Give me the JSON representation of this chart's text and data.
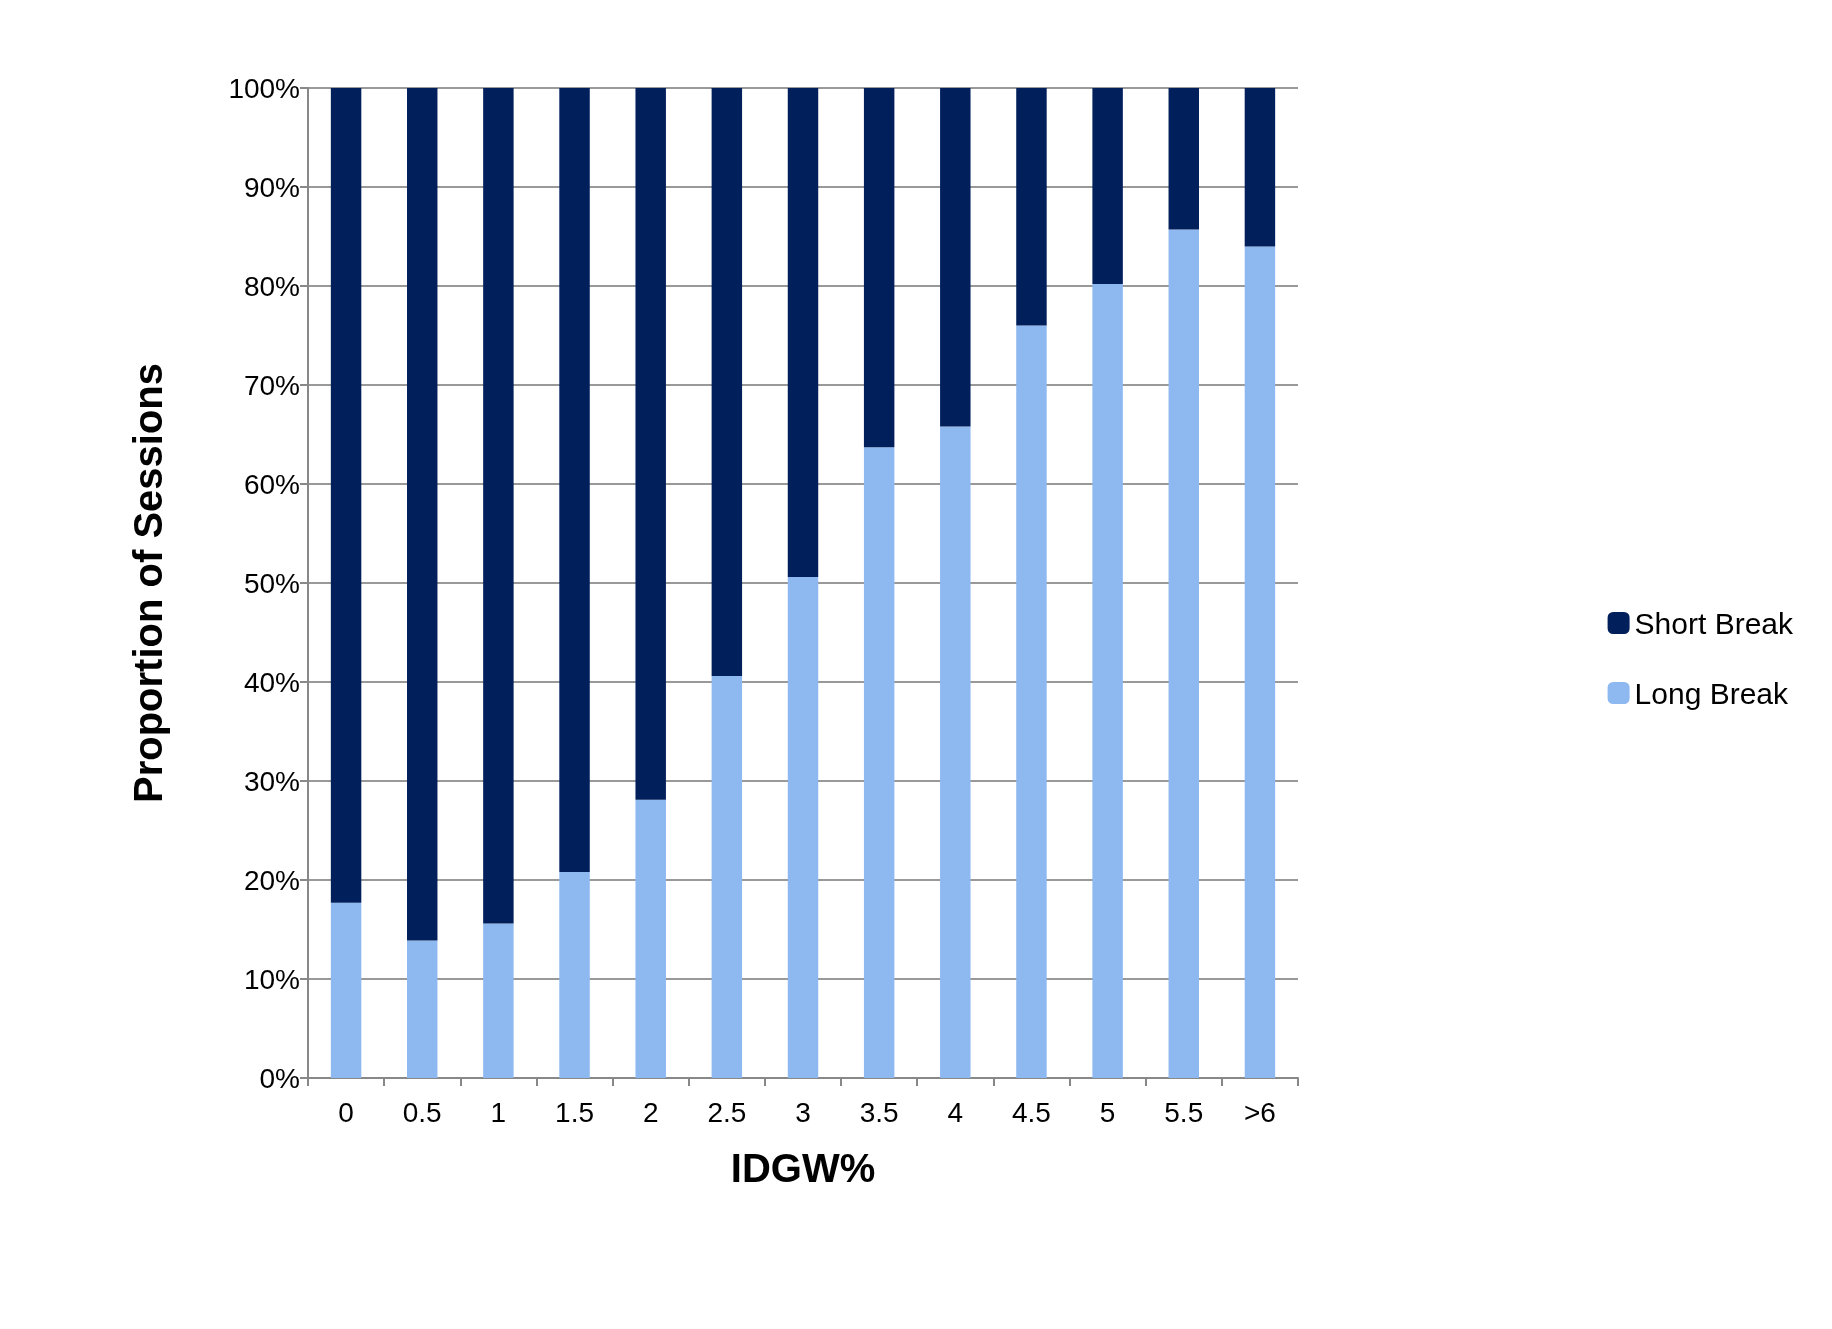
{
  "chart_data": {
    "type": "bar",
    "stacked": true,
    "xlabel": "IDGW%",
    "ylabel": "Proportion of Sessions",
    "categories": [
      "0",
      "0.5",
      "1",
      "1.5",
      "2",
      "2.5",
      "3",
      "3.5",
      "4",
      "4.5",
      "5",
      "5.5",
      ">6"
    ],
    "series": [
      {
        "name": "Long Break",
        "color": "#8db8f0",
        "values": [
          17.7,
          13.9,
          15.6,
          20.8,
          28.1,
          40.6,
          50.6,
          63.7,
          65.8,
          76.0,
          80.2,
          85.7,
          84.0
        ]
      },
      {
        "name": "Short Break",
        "color": "#001f5b",
        "values": [
          82.3,
          86.1,
          84.4,
          79.2,
          71.9,
          59.4,
          49.4,
          36.3,
          34.2,
          24.0,
          19.8,
          14.3,
          16.0
        ]
      }
    ],
    "ylim": [
      0,
      100
    ],
    "yticks": [
      {
        "value": 0,
        "label": "0%"
      },
      {
        "value": 10,
        "label": "10%"
      },
      {
        "value": 20,
        "label": "20%"
      },
      {
        "value": 30,
        "label": "30%"
      },
      {
        "value": 40,
        "label": "40%"
      },
      {
        "value": 50,
        "label": "50%"
      },
      {
        "value": 60,
        "label": "60%"
      },
      {
        "value": 70,
        "label": "70%"
      },
      {
        "value": 80,
        "label": "80%"
      },
      {
        "value": 90,
        "label": "90%"
      },
      {
        "value": 100,
        "label": "100%"
      }
    ],
    "grid": "y",
    "legend": "right"
  }
}
